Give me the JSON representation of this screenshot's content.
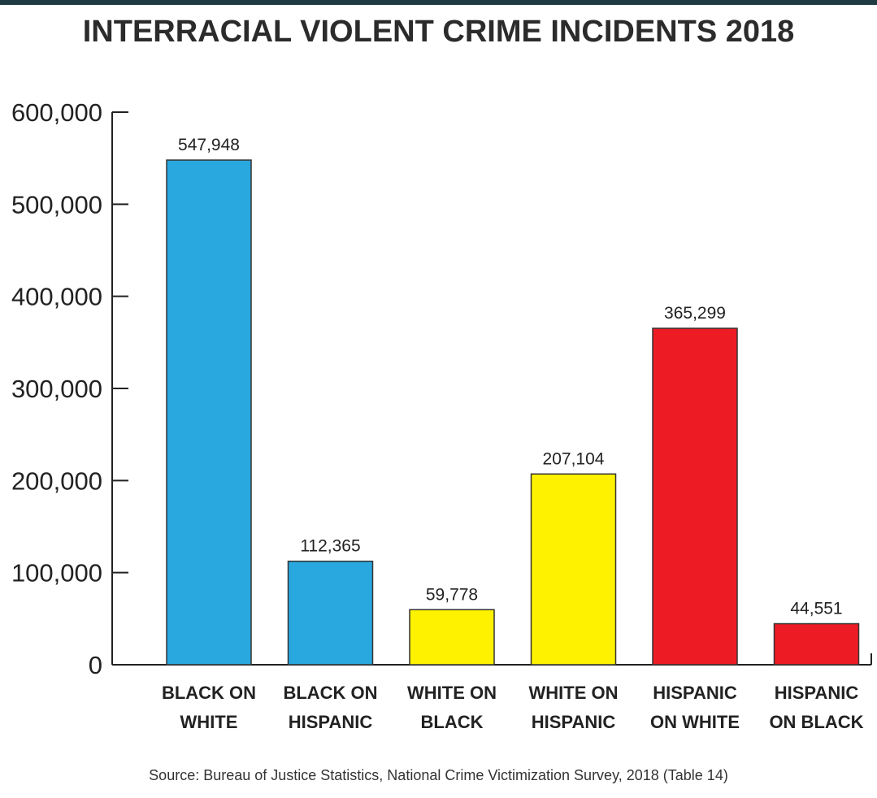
{
  "chart_data": {
    "type": "bar",
    "title": "INTERRACIAL VIOLENT CRIME INCIDENTS 2018",
    "categories": [
      [
        "BLACK ON",
        "WHITE"
      ],
      [
        "BLACK ON",
        "HISPANIC"
      ],
      [
        "WHITE ON",
        "BLACK"
      ],
      [
        "WHITE ON",
        "HISPANIC"
      ],
      [
        "HISPANIC",
        "ON WHITE"
      ],
      [
        "HISPANIC",
        "ON BLACK"
      ]
    ],
    "values": [
      547948,
      112365,
      59778,
      207104,
      365299,
      44551
    ],
    "value_labels": [
      "547,948",
      "112,365",
      "59,778",
      "207,104",
      "365,299",
      "44,551"
    ],
    "colors": [
      "#29a8e0",
      "#29a8e0",
      "#fff200",
      "#fff200",
      "#ed1c24",
      "#ed1c24"
    ],
    "ylim": [
      0,
      600000
    ],
    "yticks": [
      0,
      100000,
      200000,
      300000,
      400000,
      500000,
      600000
    ],
    "ytick_labels": [
      "0",
      "100,000",
      "200,000",
      "300,000",
      "400,000",
      "500,000",
      "600,000"
    ],
    "xlabel": "",
    "ylabel": "",
    "grid": false,
    "legend": "none",
    "source": "Source: Bureau of Justice Statistics, National Crime Victimization Survey, 2018 (Table 14)"
  }
}
